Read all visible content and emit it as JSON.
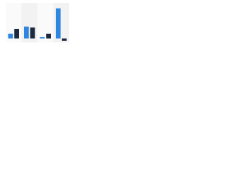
{
  "chart_data": {
    "type": "bar",
    "categories": [
      null,
      null,
      null,
      null
    ],
    "series": [
      {
        "color": "#2e86de",
        "values": [
          6,
          15,
          2,
          38
        ]
      },
      {
        "color": "#1b2a41",
        "values": [
          12,
          14,
          6,
          -3
        ]
      }
    ],
    "ylim": [
      -5,
      45
    ]
  }
}
